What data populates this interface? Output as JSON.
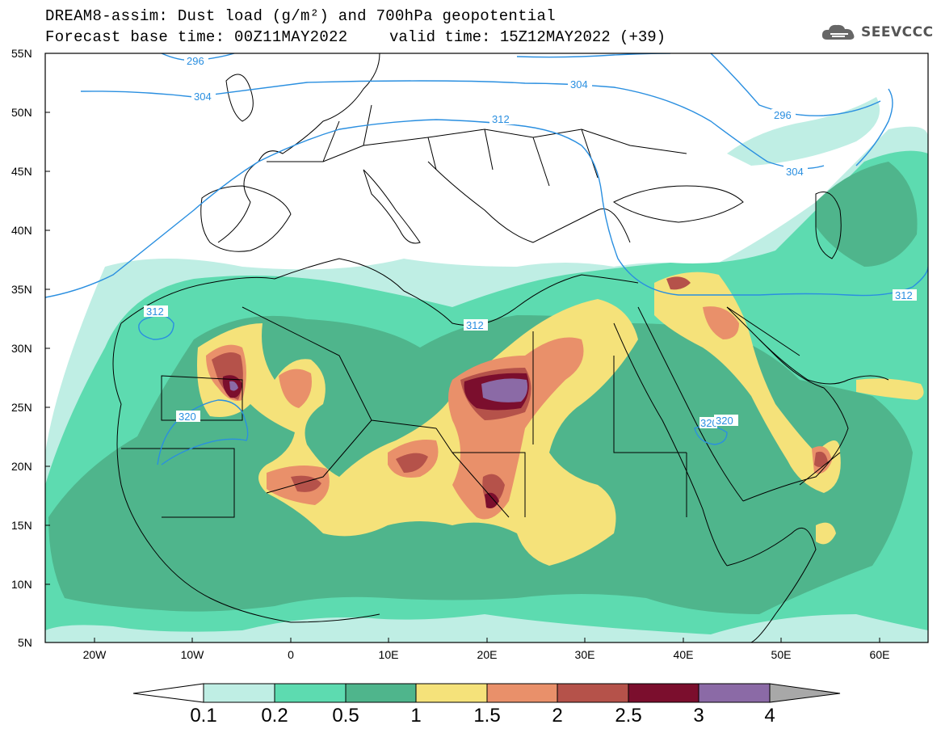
{
  "title": {
    "line1": "DREAM8-assim: Dust load (g/m²) and 700hPa geopotential",
    "line2a": "Forecast base time: 00Z11MAY2022",
    "line2b": "valid time: 15Z12MAY2022 (+39)"
  },
  "logo": {
    "text": "SEEVCCC",
    "icon": "cloud-icon"
  },
  "axes": {
    "lat_labels": [
      "55N",
      "50N",
      "45N",
      "40N",
      "35N",
      "30N",
      "25N",
      "20N",
      "15N",
      "10N",
      "5N"
    ],
    "lon_labels": [
      "20W",
      "10W",
      "0",
      "10E",
      "20E",
      "30E",
      "40E",
      "50E",
      "60E"
    ]
  },
  "contour_labels": [
    "296",
    "304",
    "312",
    "304",
    "296",
    "304",
    "312",
    "312",
    "312",
    "320",
    "320",
    "320"
  ],
  "colorbar": {
    "labels": [
      "0.1",
      "0.2",
      "0.5",
      "1",
      "1.5",
      "2",
      "2.5",
      "3",
      "4"
    ],
    "colors": [
      "#bfeee4",
      "#5ddbb0",
      "#4fb58c",
      "#f5e27a",
      "#e9906a",
      "#b5524a",
      "#7b0e2d",
      "#8b6aa6",
      "#a8a8a8"
    ]
  },
  "colors": {
    "contour": "#2a8fe0",
    "frame": "#000000"
  }
}
